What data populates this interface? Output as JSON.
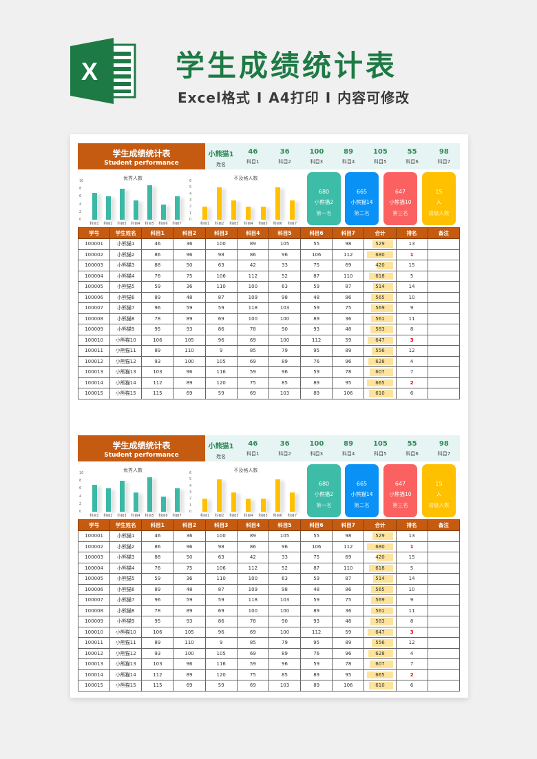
{
  "banner": {
    "title": "学生成绩统计表",
    "subtitle_parts": [
      "Excel格式",
      "A4打印",
      "内容可修改"
    ],
    "separator": "I",
    "logo_letter": "X"
  },
  "colors": {
    "brand_green": "#1e7a45",
    "header_orange": "#c55a11",
    "strip_bg": "#e6f4f3",
    "chart1": "#3cb9a6",
    "chart2": "#ffc000",
    "card_first": "#3dbca7",
    "card_second": "#0a91f5",
    "card_third": "#fb6161",
    "card_count": "#ffc000",
    "databar": "#fde39b",
    "rank_top": "#e00000"
  },
  "sheet": {
    "title_zh": "学生成绩统计表",
    "title_en": "Student performance",
    "summary": [
      {
        "value": "小熊猫1",
        "label": "姓名"
      },
      {
        "value": "46",
        "label": "科目1"
      },
      {
        "value": "36",
        "label": "科目2"
      },
      {
        "value": "100",
        "label": "科目3"
      },
      {
        "value": "89",
        "label": "科目4"
      },
      {
        "value": "105",
        "label": "科目5"
      },
      {
        "value": "55",
        "label": "科目6"
      },
      {
        "value": "98",
        "label": "科目7"
      }
    ],
    "cards": [
      {
        "score": "680",
        "name": "小熊猫2",
        "label": "第一名"
      },
      {
        "score": "665",
        "name": "小熊猫14",
        "label": "第二名"
      },
      {
        "score": "647",
        "name": "小熊猫10",
        "label": "第三名"
      },
      {
        "score": "15",
        "name": "人",
        "label": "班级人数"
      }
    ],
    "columns": [
      "学号",
      "学生姓名",
      "科目1",
      "科目2",
      "科目3",
      "科目4",
      "科目5",
      "科目6",
      "科目7",
      "合计",
      "排名",
      "备注"
    ],
    "rows": [
      [
        "100001",
        "小熊猫1",
        "46",
        "36",
        "100",
        "89",
        "105",
        "55",
        "98",
        "529",
        "13",
        ""
      ],
      [
        "100002",
        "小熊猫2",
        "86",
        "96",
        "98",
        "86",
        "96",
        "106",
        "112",
        "680",
        "1",
        ""
      ],
      [
        "100003",
        "小熊猫3",
        "88",
        "50",
        "63",
        "42",
        "33",
        "75",
        "69",
        "420",
        "15",
        ""
      ],
      [
        "100004",
        "小熊猫4",
        "76",
        "75",
        "106",
        "112",
        "52",
        "87",
        "110",
        "618",
        "5",
        ""
      ],
      [
        "100005",
        "小熊猫5",
        "59",
        "36",
        "110",
        "100",
        "63",
        "59",
        "87",
        "514",
        "14",
        ""
      ],
      [
        "100006",
        "小熊猫6",
        "89",
        "48",
        "87",
        "109",
        "98",
        "48",
        "86",
        "565",
        "10",
        ""
      ],
      [
        "100007",
        "小熊猫7",
        "96",
        "59",
        "59",
        "118",
        "103",
        "59",
        "75",
        "569",
        "9",
        ""
      ],
      [
        "100008",
        "小熊猫8",
        "78",
        "89",
        "69",
        "100",
        "100",
        "89",
        "36",
        "561",
        "11",
        ""
      ],
      [
        "100009",
        "小熊猫9",
        "95",
        "93",
        "86",
        "78",
        "90",
        "93",
        "48",
        "583",
        "8",
        ""
      ],
      [
        "100010",
        "小熊猫10",
        "106",
        "105",
        "96",
        "69",
        "100",
        "112",
        "59",
        "647",
        "3",
        ""
      ],
      [
        "100011",
        "小熊猫11",
        "89",
        "110",
        "9",
        "85",
        "79",
        "95",
        "89",
        "556",
        "12",
        ""
      ],
      [
        "100012",
        "小熊猫12",
        "93",
        "100",
        "105",
        "69",
        "89",
        "76",
        "96",
        "628",
        "4",
        ""
      ],
      [
        "100013",
        "小熊猫13",
        "103",
        "96",
        "116",
        "59",
        "96",
        "59",
        "78",
        "607",
        "7",
        ""
      ],
      [
        "100014",
        "小熊猫14",
        "112",
        "89",
        "120",
        "75",
        "85",
        "89",
        "95",
        "665",
        "2",
        ""
      ],
      [
        "100015",
        "小熊猫15",
        "115",
        "69",
        "59",
        "69",
        "103",
        "89",
        "106",
        "610",
        "6",
        ""
      ]
    ]
  },
  "chart_data": [
    {
      "type": "bar",
      "title": "优秀人数",
      "categories": [
        "科目1",
        "科目2",
        "科目3",
        "科目4",
        "科目5",
        "科目6",
        "科目7"
      ],
      "values": [
        7,
        6,
        8,
        5,
        9,
        4,
        6
      ],
      "ylim": [
        0,
        10
      ],
      "yticks": [
        0,
        2,
        4,
        6,
        8,
        10
      ],
      "xlabel": "",
      "ylabel": "",
      "grid": false,
      "legend": "none"
    },
    {
      "type": "bar",
      "title": "不及格人数",
      "categories": [
        "科目1",
        "科目2",
        "科目3",
        "科目4",
        "科目5",
        "科目6",
        "科目7"
      ],
      "values": [
        2,
        5,
        3,
        2,
        2,
        5,
        3
      ],
      "ylim": [
        0,
        6
      ],
      "yticks": [
        0,
        1,
        2,
        3,
        4,
        5,
        6
      ],
      "xlabel": "",
      "ylabel": "",
      "grid": false,
      "legend": "none"
    }
  ]
}
